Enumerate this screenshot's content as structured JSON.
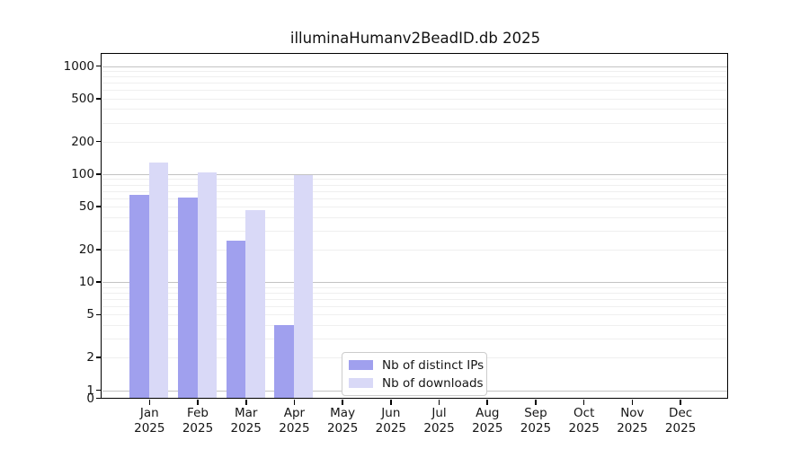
{
  "chart_data": {
    "type": "bar",
    "title": "illuminaHumanv2BeadID.db 2025",
    "categories": [
      "Jan",
      "Feb",
      "Mar",
      "Apr",
      "May",
      "Jun",
      "Jul",
      "Aug",
      "Sep",
      "Oct",
      "Nov",
      "Dec"
    ],
    "x_tick_year": "2025",
    "series": [
      {
        "name": "Nb of distinct IPs",
        "color": "#a0a0ee",
        "values": [
          64,
          61,
          24,
          4,
          null,
          null,
          null,
          null,
          null,
          null,
          null,
          null
        ]
      },
      {
        "name": "Nb of downloads",
        "color": "#d9d9f7",
        "values": [
          128,
          104,
          46,
          97,
          null,
          null,
          null,
          null,
          null,
          null,
          null,
          null
        ]
      }
    ],
    "y_axis": {
      "scale": "log",
      "ticks": [
        0,
        1,
        2,
        5,
        10,
        20,
        50,
        100,
        200,
        500,
        1000
      ],
      "top_value": 1270
    },
    "grid": {
      "major_color": "#c3c3c3",
      "minor_color": "#efefef",
      "major_values": [
        1,
        10,
        100,
        1000
      ]
    },
    "legend_position": "bottom-center",
    "colors": {
      "axis": "#000000",
      "text": "#151515",
      "background": "#ffffff"
    }
  }
}
